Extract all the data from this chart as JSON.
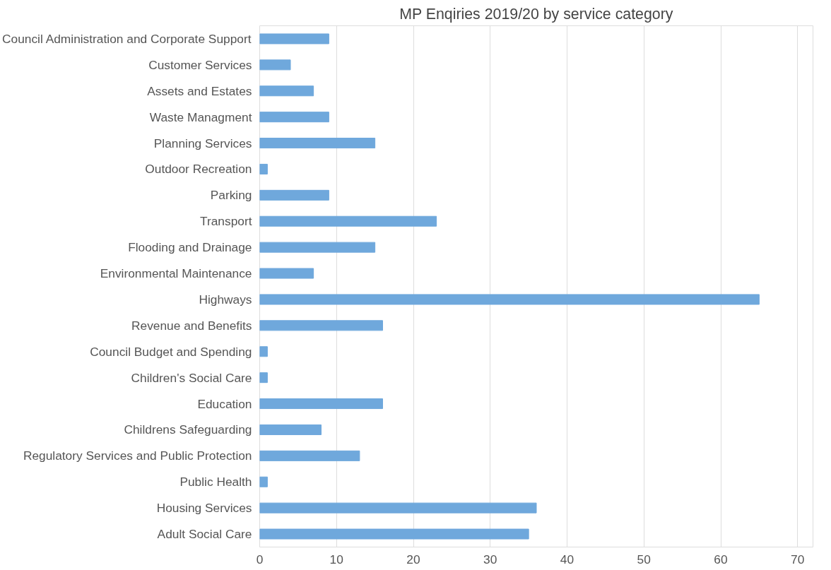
{
  "chart_data": {
    "type": "bar",
    "orientation": "horizontal",
    "title": "MP Enqiries 2019/20 by service category",
    "categories": [
      "Council Administration and Corporate Support",
      "Customer Services",
      "Assets and Estates",
      "Waste Managment",
      "Planning Services",
      "Outdoor Recreation",
      "Parking",
      "Transport",
      "Flooding and Drainage",
      "Environmental Maintenance",
      "Highways",
      "Revenue and Benefits",
      "Council Budget and Spending",
      "Children's Social Care",
      "Education",
      "Childrens Safeguarding",
      "Regulatory Services and Public Protection",
      "Public Health",
      "Housing Services",
      "Adult Social Care"
    ],
    "values": [
      9,
      4,
      7,
      9,
      15,
      1,
      9,
      23,
      15,
      7,
      65,
      16,
      1,
      1,
      16,
      8,
      13,
      1,
      36,
      35
    ],
    "color": "#6fa8dc",
    "xlim": [
      0,
      72
    ],
    "xticks": [
      0,
      10,
      20,
      30,
      40,
      50,
      60,
      70
    ],
    "grid": "x"
  }
}
